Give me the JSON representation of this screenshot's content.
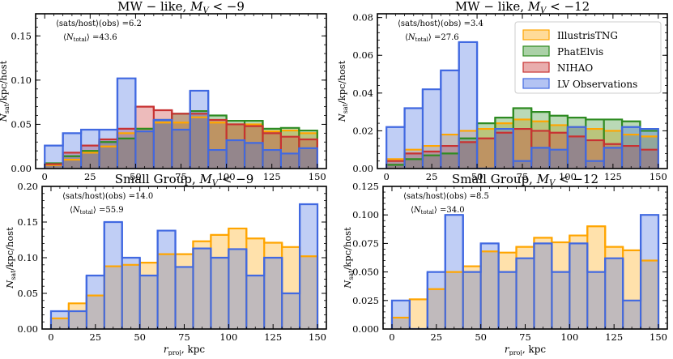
{
  "figure": {
    "xlabel_bottom": "r_proj, kpc"
  },
  "legend": {
    "entries": [
      {
        "name": "IllustrisTNG",
        "color": "#FFA500"
      },
      {
        "name": "PhatElvis",
        "color": "#2E8B22"
      },
      {
        "name": "NIHAO",
        "color": "#C83232"
      },
      {
        "name": "LV Observations",
        "color": "#4169E1"
      }
    ]
  },
  "chart_data": [
    {
      "type": "bar",
      "title": "MW − like, M_V < −9",
      "ylabel": "N_sat/kpc/host",
      "annotation_obs": "⟨sats/host⟩(obs) =6.2",
      "annotation_total": "⟨N_total⟩ =43.6",
      "xlim": [
        -5,
        155
      ],
      "ylim": [
        0,
        0.175
      ],
      "xticks": [
        0,
        25,
        50,
        75,
        100,
        125,
        150
      ],
      "yticks": [
        0.0,
        0.05,
        0.1,
        0.15
      ],
      "ytick_labels": [
        "0.00",
        "0.05",
        "0.10",
        "0.15"
      ],
      "bin_edges": [
        0,
        10,
        20,
        30,
        40,
        50,
        60,
        70,
        80,
        90,
        100,
        110,
        120,
        130,
        140,
        150
      ],
      "series": [
        {
          "name": "IllustrisTNG",
          "color": "#FFA500",
          "values": [
            0.004,
            0.01,
            0.018,
            0.025,
            0.04,
            0.045,
            0.052,
            0.052,
            0.058,
            0.052,
            0.05,
            0.05,
            0.042,
            0.043,
            0.04
          ]
        },
        {
          "name": "PhatElvis",
          "color": "#2E8B22",
          "values": [
            0.006,
            0.014,
            0.02,
            0.03,
            0.034,
            0.045,
            0.055,
            0.062,
            0.065,
            0.06,
            0.054,
            0.054,
            0.045,
            0.046,
            0.043
          ]
        },
        {
          "name": "NIHAO",
          "color": "#C83232",
          "values": [
            0.005,
            0.018,
            0.026,
            0.033,
            0.045,
            0.07,
            0.066,
            0.062,
            0.062,
            0.055,
            0.05,
            0.048,
            0.04,
            0.036,
            0.033
          ]
        },
        {
          "name": "LV Observations",
          "color": "#4169E1",
          "values": [
            0.026,
            0.04,
            0.044,
            0.044,
            0.102,
            0.042,
            0.055,
            0.044,
            0.088,
            0.021,
            0.032,
            0.029,
            0.021,
            0.017,
            0.023
          ]
        }
      ]
    },
    {
      "type": "bar",
      "title": "MW − like, M_V < −12",
      "ylabel": "N_sat/kpc/host",
      "annotation_obs": "⟨sats/host⟩(obs) =3.4",
      "annotation_total": "⟨N_total⟩ =27.6",
      "xlim": [
        -5,
        155
      ],
      "ylim": [
        0,
        0.082
      ],
      "xticks": [
        0,
        25,
        50,
        75,
        100,
        125,
        150
      ],
      "yticks": [
        0.0,
        0.02,
        0.04,
        0.06,
        0.08
      ],
      "ytick_labels": [
        "0.00",
        "0.02",
        "0.04",
        "0.06",
        "0.08"
      ],
      "bin_edges": [
        0,
        10,
        20,
        30,
        40,
        50,
        60,
        70,
        80,
        90,
        100,
        110,
        120,
        130,
        140,
        150
      ],
      "show_legend": true,
      "series": [
        {
          "name": "IllustrisTNG",
          "color": "#FFA500",
          "values": [
            0.005,
            0.01,
            0.012,
            0.018,
            0.02,
            0.021,
            0.024,
            0.026,
            0.025,
            0.023,
            0.022,
            0.021,
            0.02,
            0.018,
            0.017
          ]
        },
        {
          "name": "PhatElvis",
          "color": "#2E8B22",
          "values": [
            0.002,
            0.005,
            0.007,
            0.008,
            0.016,
            0.024,
            0.027,
            0.032,
            0.03,
            0.028,
            0.027,
            0.026,
            0.026,
            0.025,
            0.02
          ]
        },
        {
          "name": "NIHAO",
          "color": "#C83232",
          "values": [
            0.004,
            0.008,
            0.009,
            0.012,
            0.014,
            0.016,
            0.019,
            0.021,
            0.02,
            0.019,
            0.017,
            0.015,
            0.013,
            0.012,
            0.01
          ]
        },
        {
          "name": "LV Observations",
          "color": "#4169E1",
          "values": [
            0.022,
            0.032,
            0.042,
            0.052,
            0.067,
            0.0,
            0.021,
            0.004,
            0.011,
            0.01,
            0.022,
            0.004,
            0.011,
            0.022,
            0.021
          ]
        }
      ]
    },
    {
      "type": "bar",
      "title": "Small Group, M_V < −9",
      "ylabel": "N_sat/kpc/host",
      "xlabel": "r_proj, kpc",
      "annotation_obs": "⟨sats/host⟩(obs) =14.0",
      "annotation_total": "⟨N_total⟩ =55.9",
      "xlim": [
        -5,
        155
      ],
      "ylim": [
        0,
        0.2
      ],
      "xticks": [
        0,
        25,
        50,
        75,
        100,
        125,
        150
      ],
      "yticks": [
        0.0,
        0.05,
        0.1,
        0.15,
        0.2
      ],
      "ytick_labels": [
        "0.00",
        "0.05",
        "0.10",
        "0.15",
        "0.20"
      ],
      "bin_edges": [
        0,
        10,
        20,
        30,
        40,
        50,
        60,
        70,
        80,
        90,
        100,
        110,
        120,
        130,
        140,
        150
      ],
      "series": [
        {
          "name": "IllustrisTNG",
          "color": "#FFA500",
          "values": [
            0.015,
            0.036,
            0.047,
            0.088,
            0.09,
            0.093,
            0.105,
            0.105,
            0.123,
            0.132,
            0.141,
            0.127,
            0.121,
            0.115,
            0.102
          ]
        },
        {
          "name": "LV Observations",
          "color": "#4169E1",
          "values": [
            0.025,
            0.025,
            0.075,
            0.15,
            0.1,
            0.075,
            0.138,
            0.087,
            0.113,
            0.1,
            0.112,
            0.075,
            0.1,
            0.05,
            0.175
          ]
        }
      ]
    },
    {
      "type": "bar",
      "title": "Small Group, M_V < −12",
      "ylabel": "N_sat/kpc/host",
      "xlabel": "r_proj, kpc",
      "annotation_obs": "⟨sats/host⟩(obs) =8.5",
      "annotation_total": "⟨N_total⟩ =34.0",
      "xlim": [
        -5,
        155
      ],
      "ylim": [
        0,
        0.125
      ],
      "xticks": [
        0,
        25,
        50,
        75,
        100,
        125,
        150
      ],
      "yticks": [
        0.0,
        0.025,
        0.05,
        0.075,
        0.1,
        0.125
      ],
      "ytick_labels": [
        "0.000",
        "0.025",
        "0.050",
        "0.075",
        "0.100",
        "0.125"
      ],
      "bin_edges": [
        0,
        10,
        20,
        30,
        40,
        50,
        60,
        70,
        80,
        90,
        100,
        110,
        120,
        130,
        140,
        150
      ],
      "series": [
        {
          "name": "IllustrisTNG",
          "color": "#FFA500",
          "values": [
            0.01,
            0.026,
            0.035,
            0.05,
            0.055,
            0.068,
            0.067,
            0.072,
            0.08,
            0.076,
            0.082,
            0.09,
            0.072,
            0.069,
            0.06
          ]
        },
        {
          "name": "LV Observations",
          "color": "#4169E1",
          "values": [
            0.025,
            0.0,
            0.05,
            0.1,
            0.05,
            0.075,
            0.05,
            0.062,
            0.075,
            0.05,
            0.075,
            0.05,
            0.062,
            0.025,
            0.1
          ]
        }
      ]
    }
  ]
}
